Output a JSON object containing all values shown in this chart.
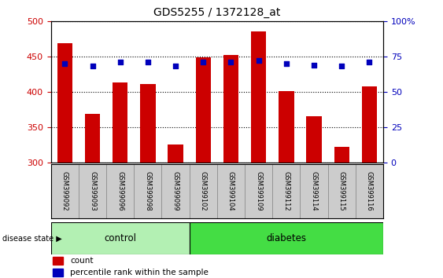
{
  "title": "GDS5255 / 1372128_at",
  "categories": [
    "GSM399092",
    "GSM399093",
    "GSM399096",
    "GSM399098",
    "GSM399099",
    "GSM399102",
    "GSM399104",
    "GSM399109",
    "GSM399112",
    "GSM399114",
    "GSM399115",
    "GSM399116"
  ],
  "counts": [
    469,
    369,
    413,
    411,
    326,
    449,
    452,
    485,
    401,
    365,
    322,
    408
  ],
  "percentile_ranks": [
    70,
    68,
    71,
    71,
    68,
    71,
    71,
    72,
    70,
    69,
    68,
    71
  ],
  "ylim_left": [
    300,
    500
  ],
  "ylim_right": [
    0,
    100
  ],
  "yticks_left": [
    300,
    350,
    400,
    450,
    500
  ],
  "yticks_right": [
    0,
    25,
    50,
    75,
    100
  ],
  "ytick_labels_right": [
    "0",
    "25",
    "50",
    "75",
    "100%"
  ],
  "bar_color": "#cc0000",
  "dot_color": "#0000bb",
  "bar_width": 0.55,
  "grid_color": "#000000",
  "n_control": 5,
  "n_diabetes": 7,
  "control_color": "#b3f0b3",
  "diabetes_color": "#44dd44",
  "control_label": "control",
  "diabetes_label": "diabetes",
  "disease_state_label": "disease state",
  "legend_count_label": "count",
  "legend_percentile_label": "percentile rank within the sample",
  "background_color": "#ffffff",
  "tick_label_color_left": "#cc0000",
  "tick_label_color_right": "#0000bb"
}
